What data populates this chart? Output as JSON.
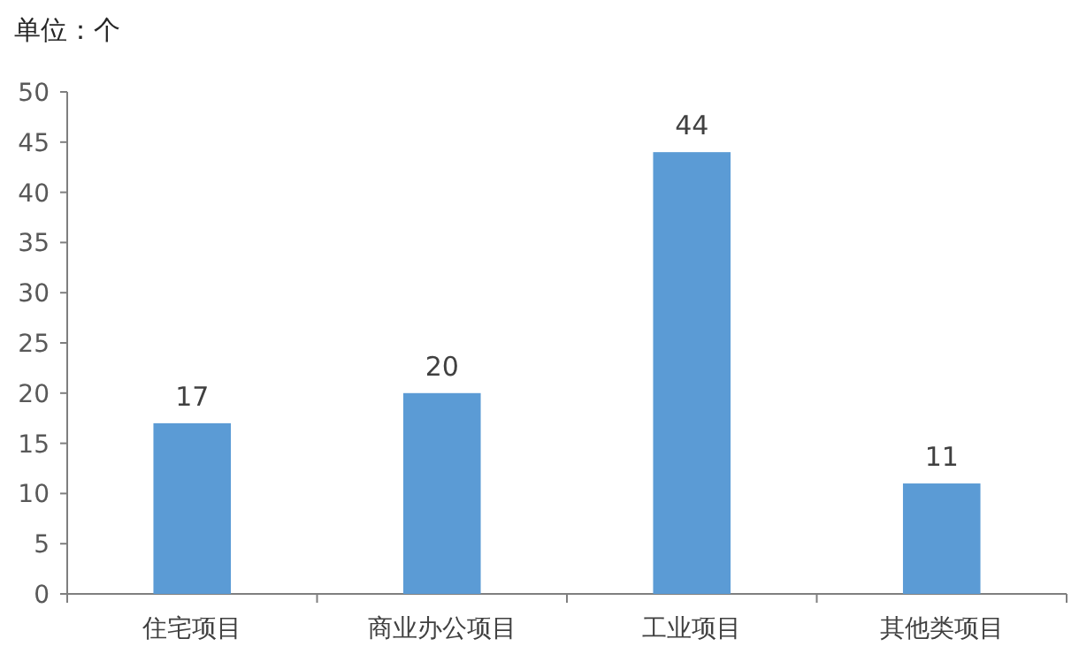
{
  "chart_data": {
    "type": "bar",
    "ylabel": "单位：个",
    "categories": [
      "住宅项目",
      "商业办公项目",
      "工业项目",
      "其他类项目"
    ],
    "values": [
      17,
      20,
      44,
      11
    ],
    "color": "#5b9bd5",
    "ylim": [
      0,
      50
    ],
    "yticks": [
      0,
      5,
      10,
      15,
      20,
      25,
      30,
      35,
      40,
      45,
      50
    ],
    "data_labels": true
  }
}
